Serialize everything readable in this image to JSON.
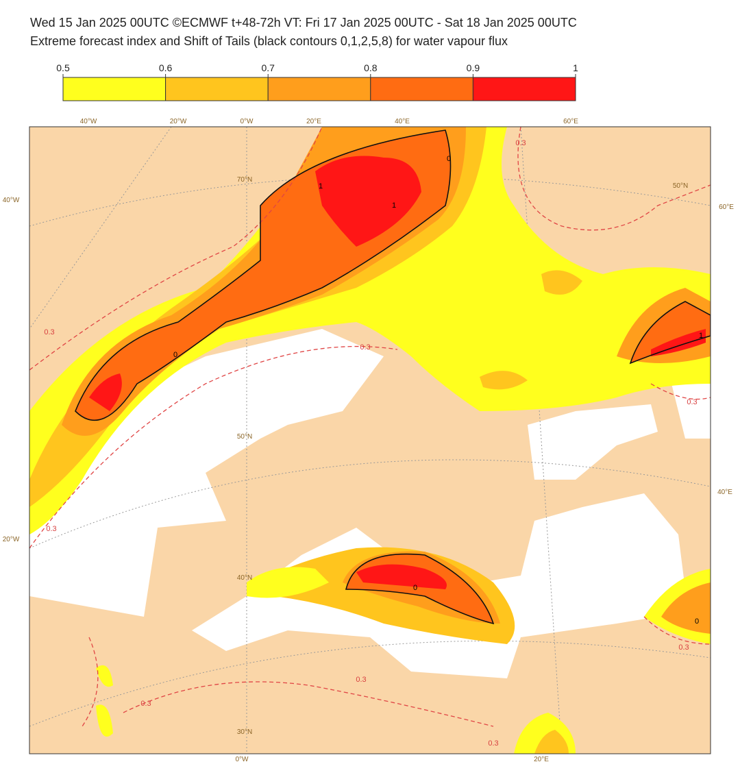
{
  "header": {
    "line1": "Wed 15 Jan 2025 00UTC ©ECMWF t+48-72h  VT: Fri 17 Jan 2025 00UTC - Sat 18 Jan 2025 00UTC",
    "line2": "Extreme forecast index and Shift of Tails (black contours 0,1,2,5,8) for water vapour flux"
  },
  "colorbar": {
    "ticks": [
      0.5,
      0.6,
      0.7,
      0.8,
      0.9,
      1
    ],
    "colors": [
      "#ffff1e",
      "#ffc51e",
      "#ff9e1c",
      "#ff6c12",
      "#ff1616"
    ]
  },
  "map": {
    "graticule_labels": [
      "40°W",
      "20°W",
      "0°W",
      "20°E",
      "40°E",
      "60°E",
      "40°W",
      "20°W",
      "60°E",
      "40°E",
      "70°N",
      "50°N",
      "50°N",
      "40°N",
      "30°N",
      "0°W",
      "20°E"
    ],
    "contour_labels": [
      "0.3",
      "0.3",
      "0.3",
      "0.3",
      "0.3",
      "0.3",
      "0.3",
      "0.3",
      "0.3",
      "0",
      "0",
      "0",
      "0",
      "1",
      "1",
      "1"
    ]
  }
}
